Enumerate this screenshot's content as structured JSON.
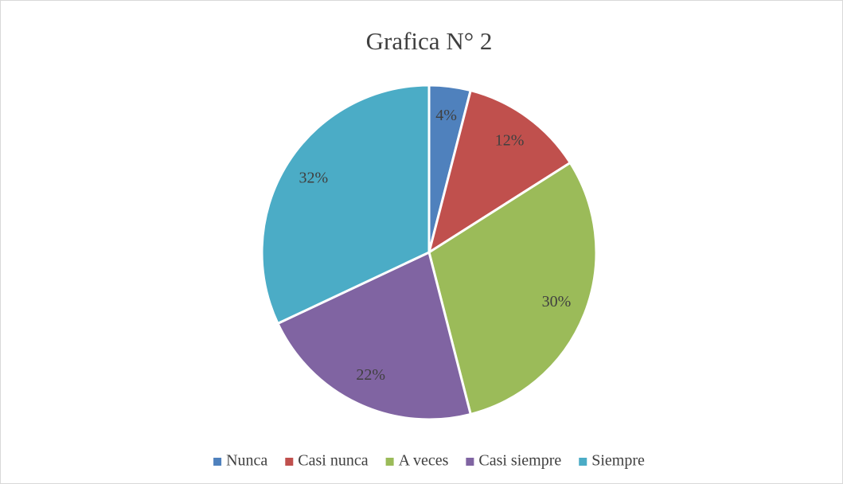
{
  "chart_data": {
    "type": "pie",
    "title": "Grafica N° 2",
    "categories": [
      "Nunca",
      "Casi nunca",
      "A veces",
      "Casi siempre",
      "Siempre"
    ],
    "values": [
      4,
      12,
      30,
      22,
      32
    ],
    "value_labels": [
      "4%",
      "12%",
      "30%",
      "22%",
      "32%"
    ],
    "colors": [
      "#4f81bd",
      "#c0504d",
      "#9bbb59",
      "#8064a2",
      "#4bacc6"
    ],
    "legend": "bottom"
  }
}
